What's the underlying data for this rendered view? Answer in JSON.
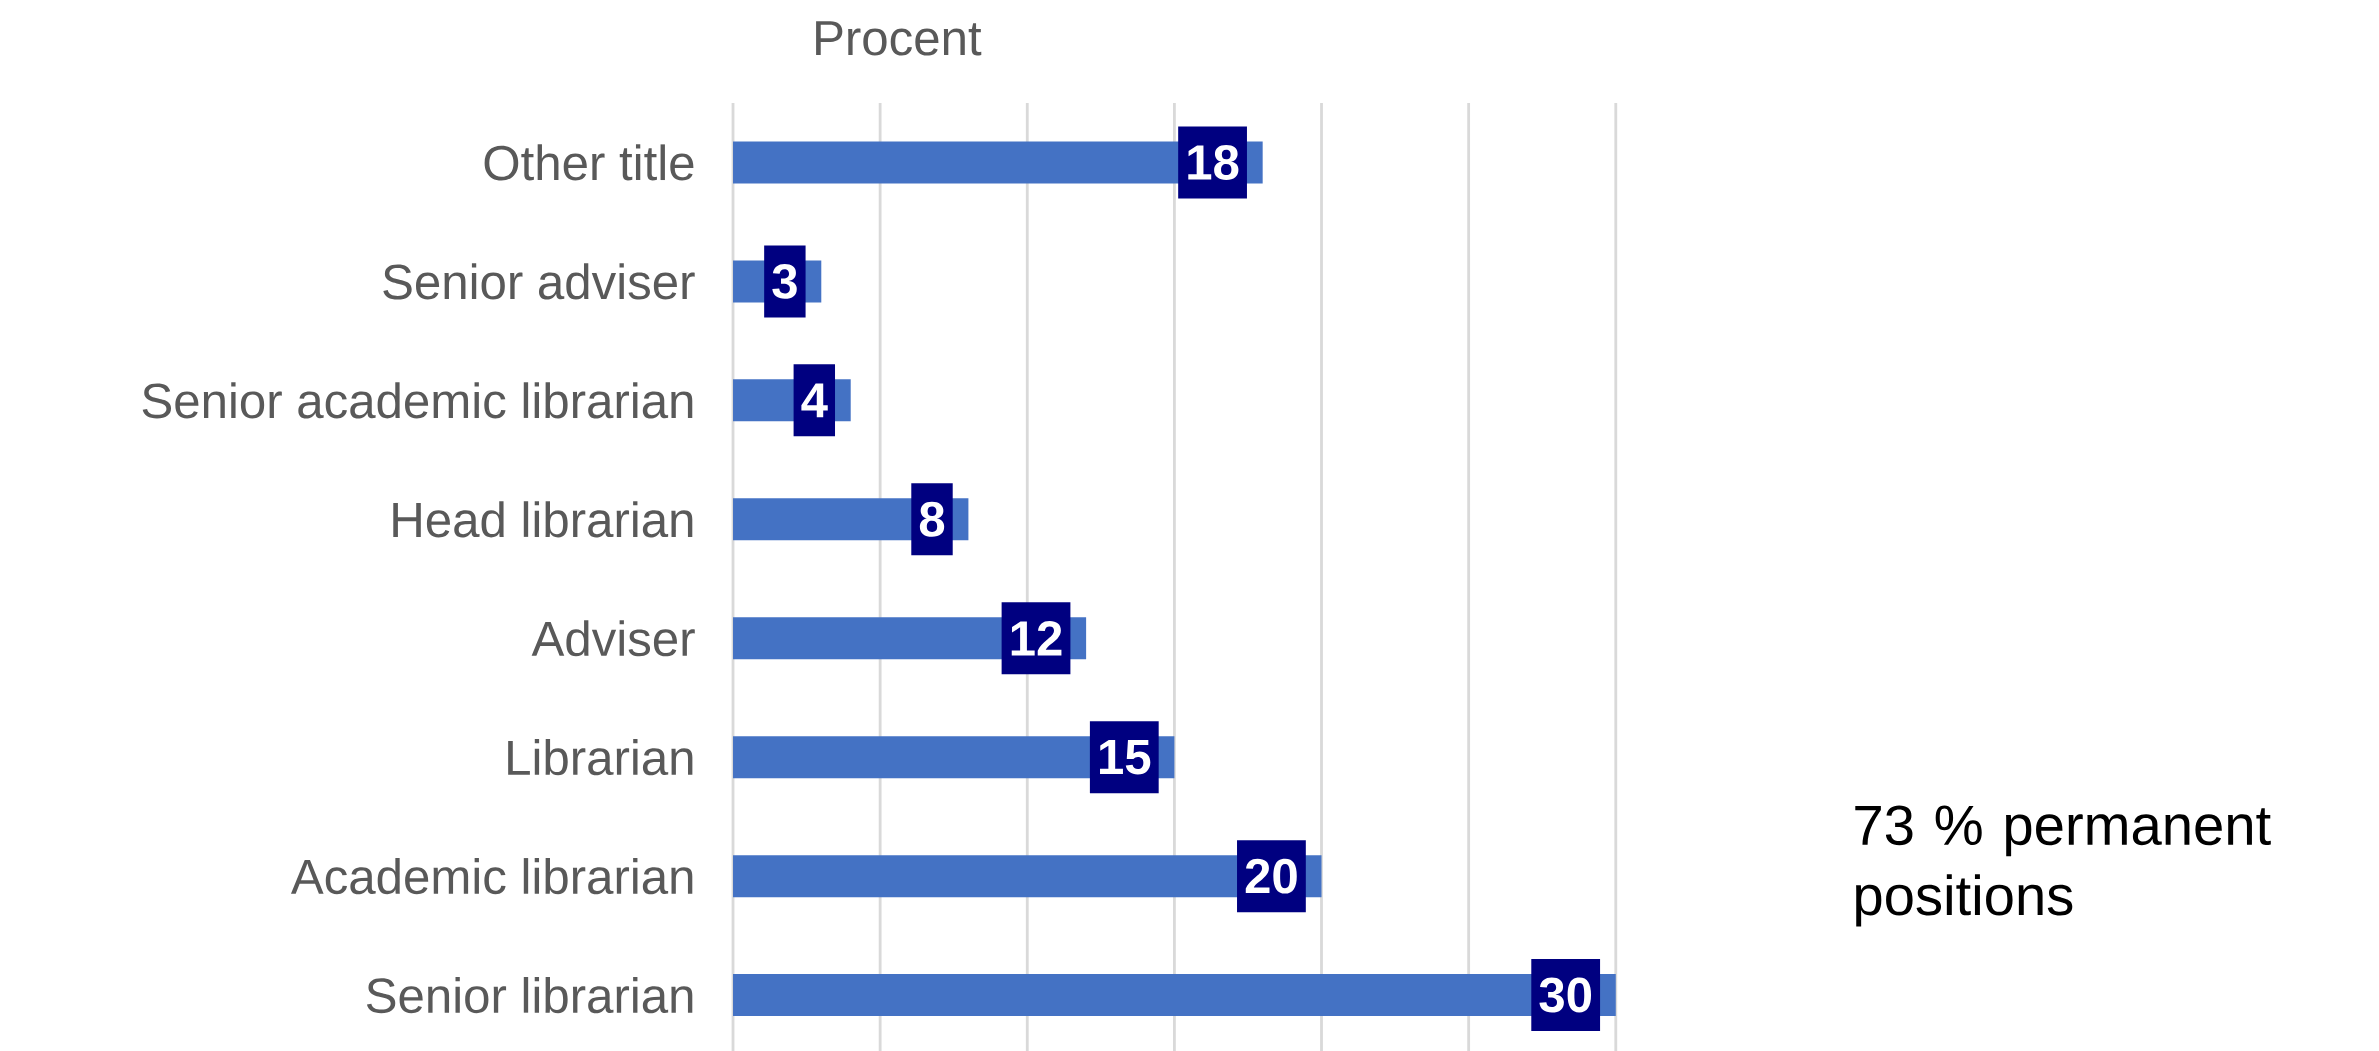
{
  "chart_data": {
    "type": "bar",
    "orientation": "horizontal",
    "xlabel": "Procent",
    "categories": [
      "Other title",
      "Senior adviser",
      "Senior academic librarian",
      "Head librarian",
      "Adviser",
      "Librarian",
      "Academic librarian",
      "Senior librarian"
    ],
    "values": [
      18,
      3,
      4,
      8,
      12,
      15,
      20,
      30
    ],
    "color": "#4472c4",
    "data_labels": true,
    "tick_labels": "y",
    "grid": "x",
    "annotations": [
      "73 % permanent positions"
    ]
  }
}
